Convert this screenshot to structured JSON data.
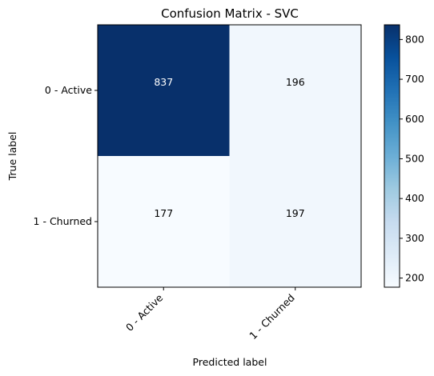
{
  "chart_data": {
    "type": "heatmap",
    "title": "Confusion Matrix - SVC",
    "xlabel": "Predicted label",
    "ylabel": "True label",
    "x_categories": [
      "0 - Active",
      "1 - Churned"
    ],
    "y_categories": [
      "0 - Active",
      "1 - Churned"
    ],
    "values": [
      [
        837,
        196
      ],
      [
        177,
        197
      ]
    ],
    "colormap": "Blues",
    "colorbar": {
      "min": 177,
      "max": 837,
      "ticks": [
        200,
        300,
        400,
        500,
        600,
        700,
        800
      ],
      "tick_labels": [
        "200",
        "300",
        "400",
        "500",
        "600",
        "700",
        "800"
      ]
    },
    "grid": false,
    "colors": {
      "low": "#f7fbff",
      "high": "#08306b",
      "text_on_light": "#000000",
      "text_on_dark": "#ffffff"
    }
  }
}
